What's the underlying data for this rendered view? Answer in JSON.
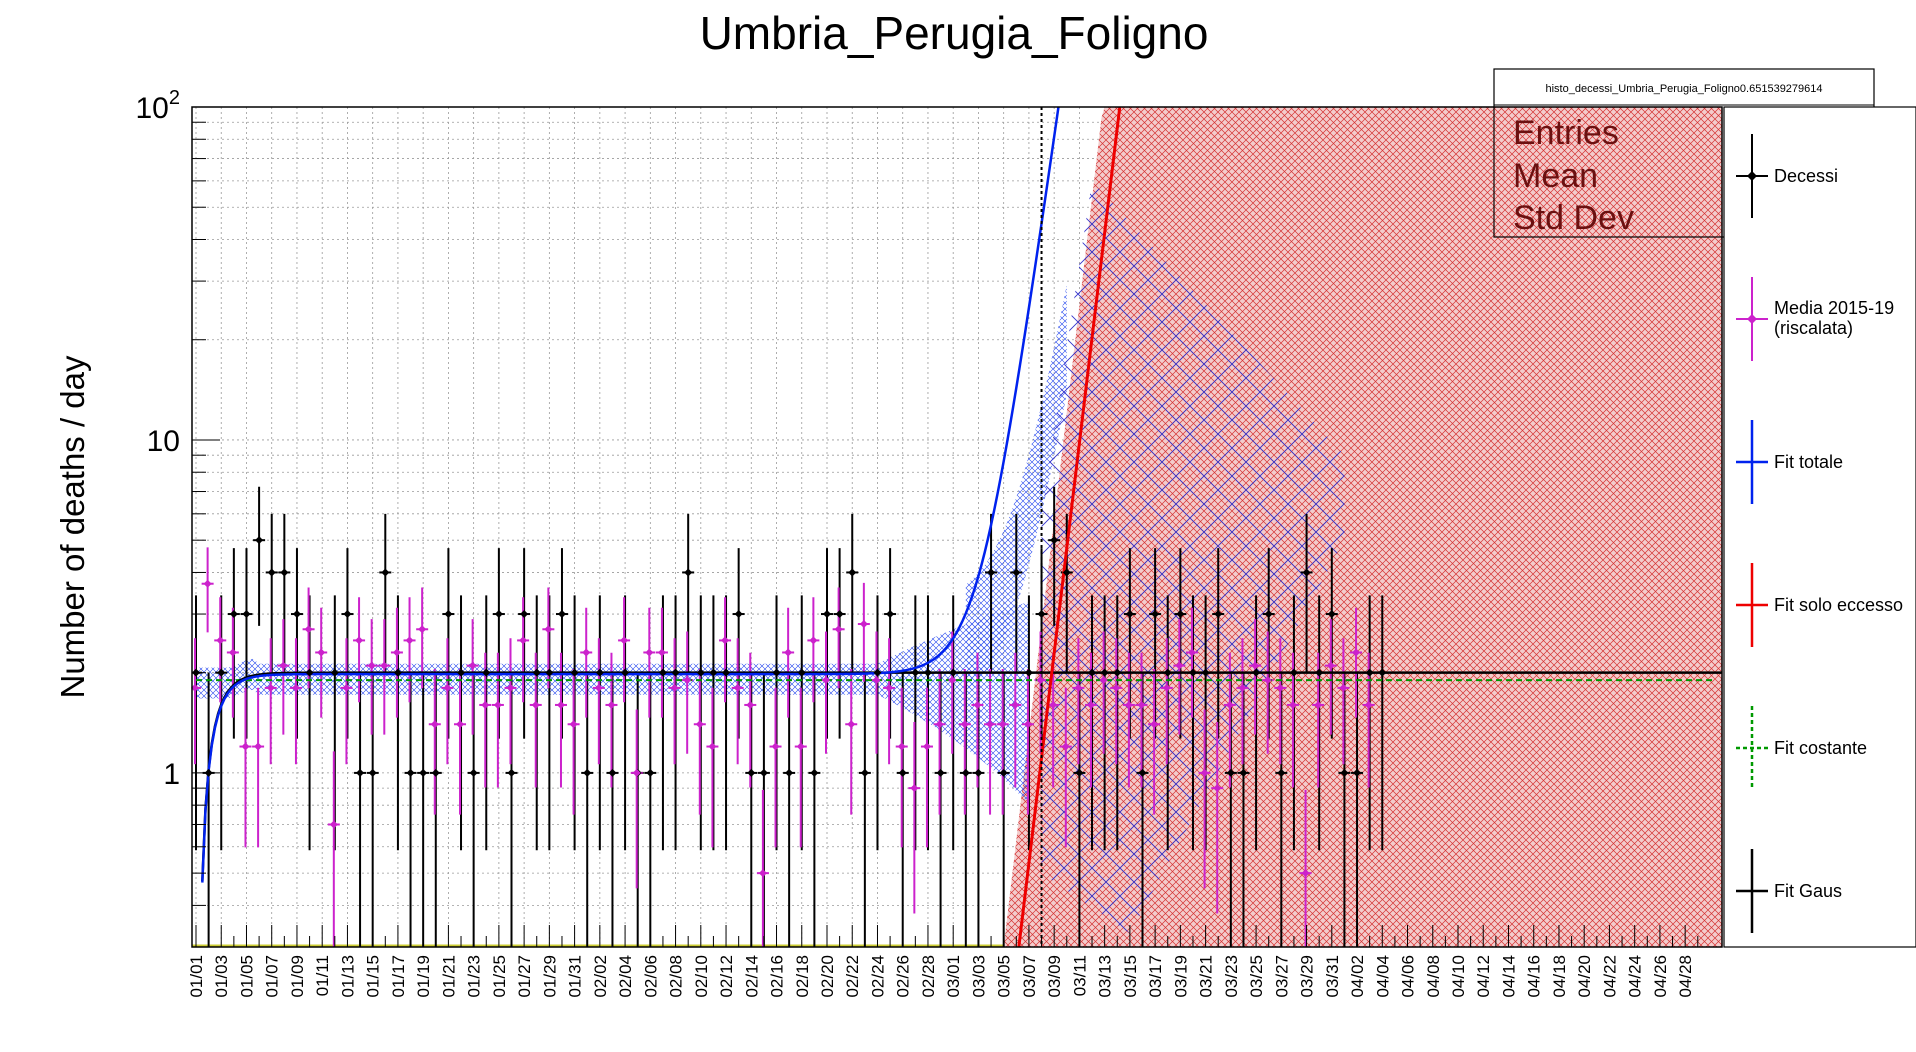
{
  "chart_data": {
    "type": "scatter",
    "title": "Umbria_Perugia_Foligno",
    "ylabel": "Number of deaths / day",
    "xlabel": "",
    "yscale": "log",
    "ylim": [
      0.3,
      100
    ],
    "y_ticks": [
      {
        "value": 1,
        "label": "1"
      },
      {
        "value": 10,
        "label": "10"
      },
      {
        "value": 100,
        "label": "10",
        "sup": "2"
      }
    ],
    "x_ticks": [
      "01/01",
      "01/03",
      "01/05",
      "01/07",
      "01/09",
      "01/11",
      "01/13",
      "01/15",
      "01/17",
      "01/19",
      "01/21",
      "01/23",
      "01/25",
      "01/27",
      "01/29",
      "01/31",
      "02/02",
      "02/04",
      "02/06",
      "02/08",
      "02/10",
      "02/12",
      "02/14",
      "02/16",
      "02/18",
      "02/20",
      "02/22",
      "02/24",
      "02/26",
      "02/28",
      "03/01",
      "03/03",
      "03/05",
      "03/07",
      "03/09",
      "03/11",
      "03/13",
      "03/15",
      "03/17",
      "03/19",
      "03/21",
      "03/23",
      "03/25",
      "03/27",
      "03/29",
      "03/31",
      "04/02",
      "04/04",
      "04/06",
      "04/08",
      "04/10",
      "04/12",
      "04/14",
      "04/16",
      "04/18",
      "04/20",
      "04/22",
      "04/24",
      "04/26",
      "04/28"
    ],
    "grid": true,
    "vertical_line_day": 68,
    "stats_box": {
      "name": "histo_decessi_Umbria_Perugia_Foligno0.651539279614",
      "rows": [
        "Entries",
        "Mean",
        "Std Dev"
      ]
    },
    "legend": {
      "position": "right",
      "entries": [
        {
          "label": "Decessi",
          "color": "#000000",
          "style": "marker"
        },
        {
          "label": "Media 2015-19",
          "label2": "(riscalata)",
          "color": "#cc22cc",
          "style": "marker"
        },
        {
          "label": "Fit totale",
          "color": "#0022ee",
          "style": "line"
        },
        {
          "label": "Fit solo eccesso",
          "color": "#ee0000",
          "style": "line"
        },
        {
          "label": "Fit costante",
          "color": "#009900",
          "style": "dashed"
        },
        {
          "label": "Fit Gaus",
          "color": "#000000",
          "style": "line"
        }
      ]
    },
    "series": [
      {
        "name": "Decessi",
        "color": "#000000",
        "x": [
          1,
          2,
          3,
          4,
          5,
          6,
          7,
          8,
          9,
          10,
          12,
          13,
          14,
          15,
          16,
          17,
          18,
          19,
          20,
          21,
          22,
          23,
          24,
          25,
          26,
          27,
          28,
          29,
          30,
          31,
          32,
          33,
          34,
          35,
          36,
          37,
          38,
          39,
          40,
          41,
          42,
          43,
          44,
          45,
          46,
          47,
          48,
          49,
          50,
          51,
          52,
          53,
          54,
          55,
          56,
          57,
          58,
          59,
          60,
          61,
          62,
          63,
          64,
          65,
          66,
          67,
          68,
          69,
          70,
          71,
          72,
          73,
          74,
          75,
          76,
          77,
          78,
          79,
          80,
          81,
          82,
          83,
          84,
          85,
          86,
          87,
          88,
          89,
          90,
          91,
          92,
          93,
          94,
          95
        ],
        "y": [
          2,
          1,
          2,
          3,
          3,
          5,
          4,
          4,
          3,
          2,
          2,
          3,
          1,
          1,
          4,
          2,
          1,
          1,
          1,
          3,
          2,
          1,
          2,
          3,
          1,
          3,
          2,
          2,
          3,
          2,
          1,
          2,
          1,
          2,
          1,
          1,
          2,
          2,
          4,
          2,
          2,
          2,
          3,
          1,
          1,
          2,
          1,
          2,
          1,
          3,
          3,
          4,
          1,
          2,
          3,
          1,
          2,
          2,
          1,
          2,
          1,
          1,
          4,
          1,
          4,
          2,
          3,
          5,
          4,
          1,
          2,
          2,
          2,
          3,
          1,
          3,
          2,
          3,
          2,
          2,
          3,
          1,
          1,
          2,
          3,
          1,
          2,
          4,
          2,
          3,
          1,
          1,
          2,
          2
        ]
      },
      {
        "name": "Media 2015-19",
        "color": "#cc22cc",
        "x": [
          1,
          2,
          3,
          4,
          5,
          6,
          7,
          8,
          9,
          10,
          11,
          12,
          13,
          14,
          15,
          16,
          17,
          18,
          19,
          20,
          21,
          22,
          23,
          24,
          25,
          26,
          27,
          28,
          29,
          30,
          31,
          32,
          33,
          34,
          35,
          36,
          37,
          38,
          39,
          40,
          41,
          42,
          43,
          44,
          45,
          46,
          47,
          48,
          49,
          50,
          51,
          52,
          53,
          54,
          55,
          56,
          57,
          58,
          59,
          60,
          61,
          62,
          63,
          64,
          65,
          66,
          67,
          68,
          69,
          70,
          71,
          72,
          73,
          74,
          75,
          76,
          77,
          78,
          79,
          80,
          81,
          82,
          83,
          84,
          85,
          86,
          87,
          88,
          89,
          90,
          91,
          92,
          93,
          94
        ],
        "y": [
          1.8,
          3.7,
          2.5,
          2.3,
          1.2,
          1.2,
          1.8,
          2.1,
          1.8,
          2.7,
          2.3,
          0.7,
          1.8,
          2.5,
          2.1,
          2.1,
          2.3,
          2.5,
          2.7,
          1.4,
          1.8,
          1.4,
          2.1,
          1.6,
          1.6,
          1.8,
          2.5,
          1.6,
          2.7,
          1.6,
          1.4,
          2.3,
          1.8,
          1.6,
          2.5,
          1.0,
          2.3,
          2.3,
          1.8,
          1.9,
          1.4,
          1.2,
          2.5,
          1.8,
          1.6,
          0.5,
          1.2,
          2.3,
          1.2,
          2.5,
          1.9,
          2.7,
          1.4,
          2.8,
          1.9,
          1.8,
          1.2,
          0.9,
          1.2,
          1.4,
          1.9,
          1.4,
          1.6,
          1.4,
          1.4,
          1.6,
          1.4,
          1.9,
          1.6,
          1.2,
          1.8,
          1.6,
          1.9,
          1.8,
          1.6,
          1.6,
          1.4,
          1.8,
          2.1,
          2.3,
          1.0,
          0.9,
          1.6,
          1.8,
          2.1,
          1.9,
          1.8,
          1.6,
          0.5,
          1.6,
          2.1,
          1.8,
          2.3,
          1.6
        ]
      }
    ]
  }
}
